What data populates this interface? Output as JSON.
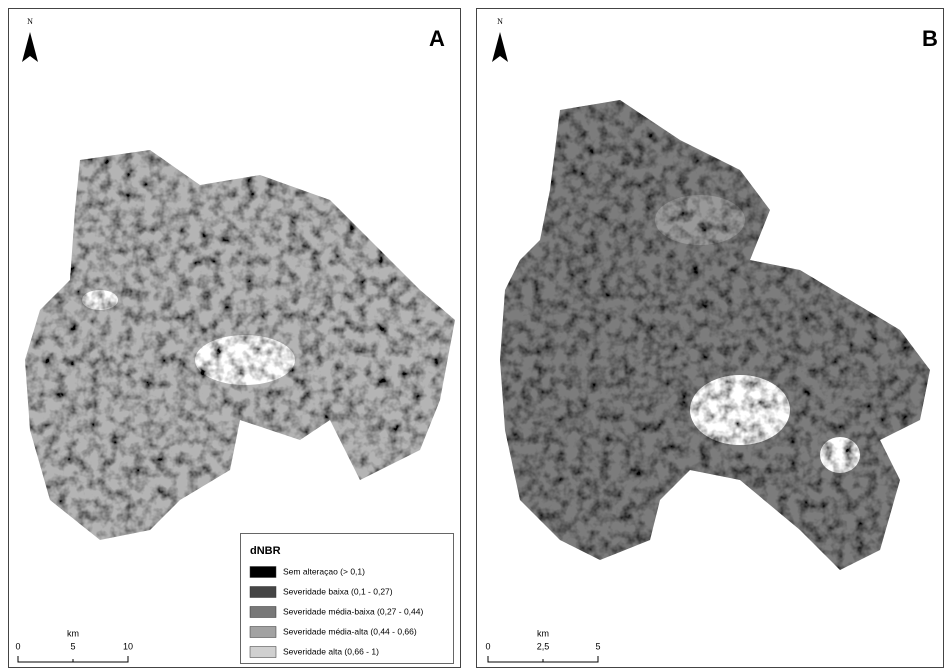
{
  "panels": [
    {
      "label": "A",
      "north": "N",
      "scale": {
        "unit": "km",
        "ticks": [
          "0",
          "5",
          "10"
        ]
      }
    },
    {
      "label": "B",
      "north": "N",
      "scale": {
        "unit": "km",
        "ticks": [
          "0",
          "2,5",
          "5"
        ]
      }
    }
  ],
  "legend": {
    "title": "dNBR",
    "items": [
      {
        "label": "Sem alteraçao (> 0,1)",
        "color": "#000000"
      },
      {
        "label": "Severidade baixa (0,1 - 0,27)",
        "color": "#454545"
      },
      {
        "label": "Severidade média-baixa (0,27 - 0,44)",
        "color": "#787878"
      },
      {
        "label": "Severidade média-alta (0,44 - 0,66)",
        "color": "#a2a2a2"
      },
      {
        "label": "Severidade alta (0,66 - 1)",
        "color": "#d0d0d0"
      }
    ]
  }
}
